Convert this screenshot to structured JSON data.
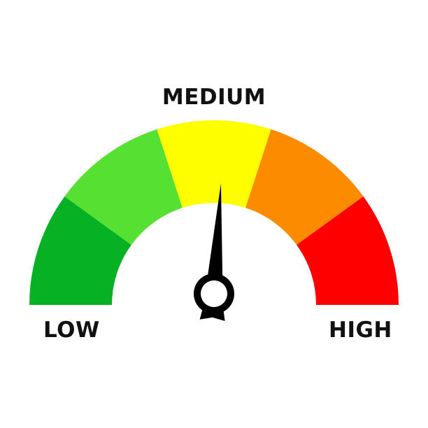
{
  "gauge": {
    "labels": {
      "low": "LOW",
      "medium": "MEDIUM",
      "high": "HIGH"
    },
    "segments": [
      {
        "color": "#06b124"
      },
      {
        "color": "#56e132"
      },
      {
        "color": "#fefe00"
      },
      {
        "color": "#fd8b00"
      },
      {
        "color": "#fe0000"
      }
    ],
    "needle_level": 0.52,
    "needle_color": "#000000",
    "background_color": "#ffffff"
  }
}
